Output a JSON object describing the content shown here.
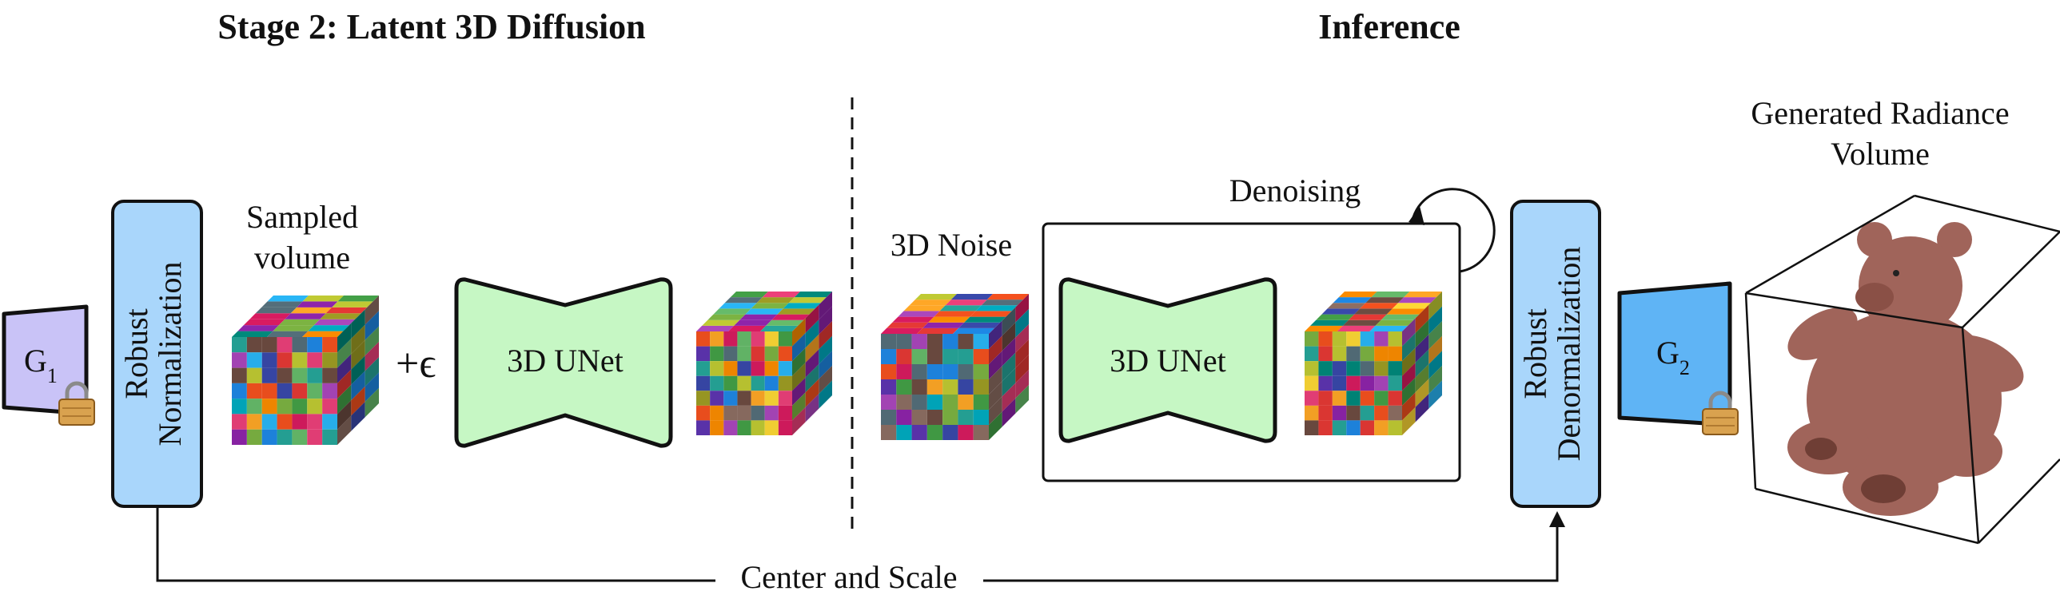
{
  "headings": {
    "stage2": "Stage 2: Latent 3D Diffusion",
    "inference": "Inference"
  },
  "encoder1": {
    "main": "G",
    "subscript": "1",
    "icon": "lock-icon"
  },
  "encoder2": {
    "main": "G",
    "subscript": "2",
    "icon": "lock-icon"
  },
  "robust_norm": {
    "line1": "Robust",
    "line2": "Normalization"
  },
  "robust_denorm": {
    "line1": "Robust",
    "line2": "Denormalization"
  },
  "sampled_volume": {
    "line1": "Sampled",
    "line2": "volume"
  },
  "plus_noise": "+ϵ",
  "unet_stage2": "3D UNet",
  "unet_inference": "3D UNet",
  "noise_label": "3D Noise",
  "denoising_label": "Denoising",
  "output": {
    "line1": "Generated Radiance",
    "line2": "Volume"
  },
  "flow_label": "Center and Scale",
  "colors": {
    "encoder1_fill": "#C9C3F7",
    "encoder2_fill": "#5FB4F5",
    "norm_fill": "#A9D6FB",
    "unet_fill": "#C6F7C4",
    "lock_body": "#D9A24F",
    "bear_fill": "#A0645A"
  }
}
